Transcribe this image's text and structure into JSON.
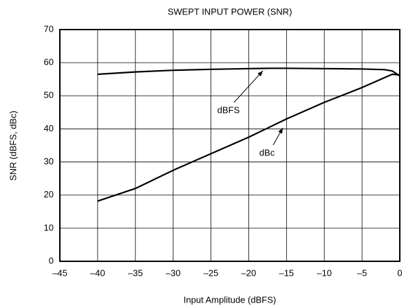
{
  "chart_data": {
    "type": "line",
    "title": "SWEPT INPUT POWER (SNR)",
    "xlabel": "Input Amplitude (dBFS)",
    "ylabel": "SNR (dBFS, dBc)",
    "xlim": [
      -45,
      0
    ],
    "ylim": [
      0,
      70
    ],
    "xticks": [
      {
        "value": -45,
        "label": "–45"
      },
      {
        "value": -40,
        "label": "–40"
      },
      {
        "value": -35,
        "label": "–35"
      },
      {
        "value": -30,
        "label": "–30"
      },
      {
        "value": -25,
        "label": "–25"
      },
      {
        "value": -20,
        "label": "–20"
      },
      {
        "value": -15,
        "label": "–15"
      },
      {
        "value": -10,
        "label": "–10"
      },
      {
        "value": -5,
        "label": "–5"
      },
      0
    ],
    "yticks": [
      0,
      10,
      20,
      30,
      40,
      50,
      60,
      70
    ],
    "grid": true,
    "series": [
      {
        "name": "dBFS",
        "color": "#000000",
        "x": [
          -40,
          -35,
          -30,
          -25,
          -20,
          -17,
          -15,
          -10,
          -5,
          -2,
          -1,
          0
        ],
        "values": [
          56.5,
          57.2,
          57.7,
          58.0,
          58.2,
          58.3,
          58.3,
          58.2,
          58.1,
          57.9,
          57.5,
          56.0
        ]
      },
      {
        "name": "dBc",
        "color": "#000000",
        "x": [
          -40,
          -35,
          -30,
          -25,
          -20,
          -15,
          -10,
          -5,
          -1,
          0
        ],
        "values": [
          18.2,
          22.0,
          27.5,
          32.5,
          37.5,
          43.0,
          48.0,
          52.5,
          56.5,
          56.3
        ]
      }
    ]
  }
}
